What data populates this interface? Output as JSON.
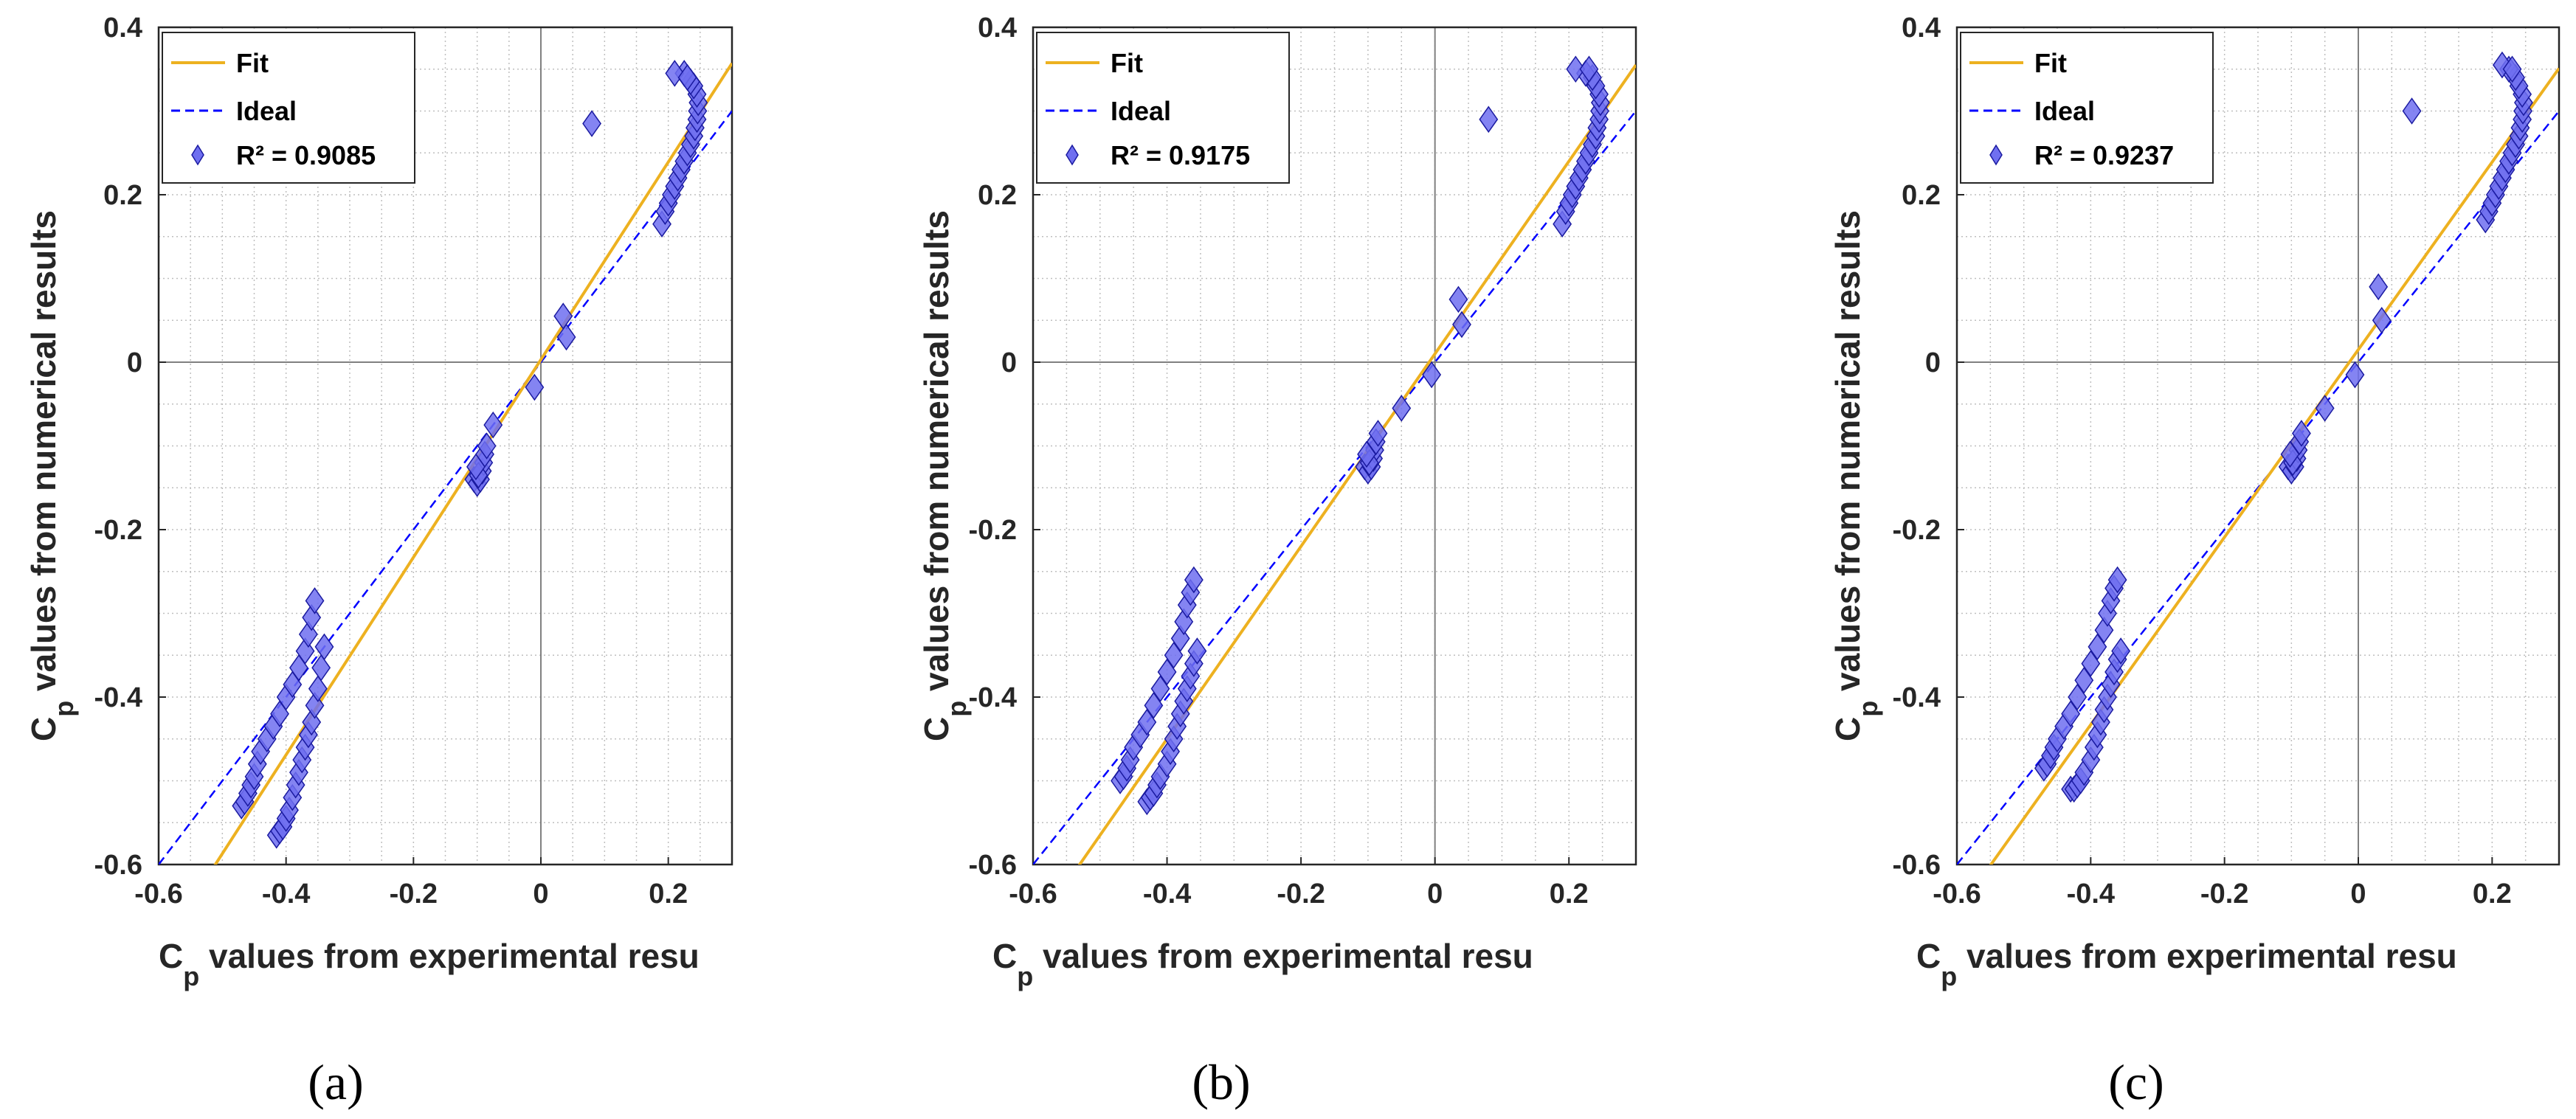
{
  "colors": {
    "fit": "#EDB120",
    "ideal": "#0000FF",
    "marker_fill": "#6F6FF0",
    "marker_edge": "#1A1AA0",
    "grid": "#BFBFBF",
    "axes": "#262626"
  },
  "chart_data": [
    {
      "type": "scatter",
      "caption": "(a)",
      "xlabel_main": "C",
      "xlabel_sub": "p",
      "xlabel_rest": " values from experimental resu",
      "ylabel_main": "C",
      "ylabel_sub": "p",
      "ylabel_rest": " values from numerical results",
      "xlim": [
        -0.6,
        0.3
      ],
      "ylim": [
        -0.6,
        0.4
      ],
      "xticks": [
        "-0.6",
        "-0.4",
        "-0.2",
        "0",
        "0.2"
      ],
      "yticks": [
        "-0.6",
        "-0.4",
        "-0.2",
        "0",
        "0.2",
        "0.4"
      ],
      "legend": {
        "position": "top-left",
        "entries": [
          "Fit",
          "Ideal",
          "R² = 0.9085"
        ]
      },
      "fit_line": {
        "slope": 1.18,
        "intercept": 0.003
      },
      "ideal_line": {
        "slope": 1,
        "intercept": 0
      },
      "points": [
        [
          -0.47,
          -0.53
        ],
        [
          -0.465,
          -0.525
        ],
        [
          -0.46,
          -0.515
        ],
        [
          -0.455,
          -0.505
        ],
        [
          -0.45,
          -0.495
        ],
        [
          -0.445,
          -0.48
        ],
        [
          -0.44,
          -0.465
        ],
        [
          -0.43,
          -0.45
        ],
        [
          -0.42,
          -0.435
        ],
        [
          -0.41,
          -0.42
        ],
        [
          -0.4,
          -0.4
        ],
        [
          -0.39,
          -0.385
        ],
        [
          -0.38,
          -0.365
        ],
        [
          -0.37,
          -0.345
        ],
        [
          -0.365,
          -0.325
        ],
        [
          -0.36,
          -0.305
        ],
        [
          -0.355,
          -0.285
        ],
        [
          -0.415,
          -0.565
        ],
        [
          -0.41,
          -0.56
        ],
        [
          -0.405,
          -0.555
        ],
        [
          -0.4,
          -0.545
        ],
        [
          -0.395,
          -0.535
        ],
        [
          -0.39,
          -0.52
        ],
        [
          -0.385,
          -0.505
        ],
        [
          -0.38,
          -0.49
        ],
        [
          -0.375,
          -0.475
        ],
        [
          -0.37,
          -0.46
        ],
        [
          -0.365,
          -0.445
        ],
        [
          -0.36,
          -0.43
        ],
        [
          -0.355,
          -0.41
        ],
        [
          -0.35,
          -0.39
        ],
        [
          -0.345,
          -0.365
        ],
        [
          -0.34,
          -0.34
        ],
        [
          -0.105,
          -0.14
        ],
        [
          -0.1,
          -0.145
        ],
        [
          -0.095,
          -0.14
        ],
        [
          -0.092,
          -0.13
        ],
        [
          -0.09,
          -0.12
        ],
        [
          -0.088,
          -0.11
        ],
        [
          -0.085,
          -0.1
        ],
        [
          -0.098,
          -0.135
        ],
        [
          -0.102,
          -0.125
        ],
        [
          -0.075,
          -0.075
        ],
        [
          -0.01,
          -0.03
        ],
        [
          0.035,
          0.055
        ],
        [
          0.04,
          0.03
        ],
        [
          0.08,
          0.285
        ],
        [
          0.19,
          0.165
        ],
        [
          0.195,
          0.18
        ],
        [
          0.2,
          0.19
        ],
        [
          0.205,
          0.2
        ],
        [
          0.21,
          0.21
        ],
        [
          0.215,
          0.22
        ],
        [
          0.22,
          0.23
        ],
        [
          0.225,
          0.24
        ],
        [
          0.23,
          0.25
        ],
        [
          0.235,
          0.26
        ],
        [
          0.24,
          0.27
        ],
        [
          0.242,
          0.28
        ],
        [
          0.245,
          0.29
        ],
        [
          0.246,
          0.3
        ],
        [
          0.247,
          0.31
        ],
        [
          0.245,
          0.32
        ],
        [
          0.24,
          0.33
        ],
        [
          0.235,
          0.335
        ],
        [
          0.225,
          0.345
        ],
        [
          0.21,
          0.345
        ],
        [
          0.23,
          0.34
        ]
      ]
    },
    {
      "type": "scatter",
      "caption": "(b)",
      "xlabel_main": "C",
      "xlabel_sub": "p",
      "xlabel_rest": " values from experimental resu",
      "ylabel_main": "C",
      "ylabel_sub": "p",
      "ylabel_rest": " values from numerical results",
      "xlim": [
        -0.6,
        0.3
      ],
      "ylim": [
        -0.6,
        0.4
      ],
      "xticks": [
        "-0.6",
        "-0.4",
        "-0.2",
        "0",
        "0.2"
      ],
      "yticks": [
        "-0.6",
        "-0.4",
        "-0.2",
        "0",
        "0.2",
        "0.4"
      ],
      "legend": {
        "position": "top-left",
        "entries": [
          "Fit",
          "Ideal",
          "R² = 0.9175"
        ]
      },
      "fit_line": {
        "slope": 1.15,
        "intercept": 0.01
      },
      "ideal_line": {
        "slope": 1,
        "intercept": 0
      },
      "points": [
        [
          -0.47,
          -0.5
        ],
        [
          -0.465,
          -0.495
        ],
        [
          -0.46,
          -0.485
        ],
        [
          -0.455,
          -0.475
        ],
        [
          -0.45,
          -0.46
        ],
        [
          -0.44,
          -0.445
        ],
        [
          -0.43,
          -0.43
        ],
        [
          -0.42,
          -0.41
        ],
        [
          -0.41,
          -0.39
        ],
        [
          -0.4,
          -0.37
        ],
        [
          -0.39,
          -0.35
        ],
        [
          -0.38,
          -0.33
        ],
        [
          -0.375,
          -0.31
        ],
        [
          -0.37,
          -0.29
        ],
        [
          -0.365,
          -0.275
        ],
        [
          -0.36,
          -0.26
        ],
        [
          -0.43,
          -0.525
        ],
        [
          -0.425,
          -0.52
        ],
        [
          -0.42,
          -0.515
        ],
        [
          -0.415,
          -0.505
        ],
        [
          -0.41,
          -0.495
        ],
        [
          -0.4,
          -0.48
        ],
        [
          -0.395,
          -0.465
        ],
        [
          -0.39,
          -0.45
        ],
        [
          -0.385,
          -0.435
        ],
        [
          -0.38,
          -0.42
        ],
        [
          -0.375,
          -0.405
        ],
        [
          -0.37,
          -0.39
        ],
        [
          -0.365,
          -0.375
        ],
        [
          -0.36,
          -0.36
        ],
        [
          -0.355,
          -0.345
        ],
        [
          -0.105,
          -0.125
        ],
        [
          -0.1,
          -0.13
        ],
        [
          -0.095,
          -0.125
        ],
        [
          -0.092,
          -0.115
        ],
        [
          -0.09,
          -0.105
        ],
        [
          -0.088,
          -0.095
        ],
        [
          -0.085,
          -0.085
        ],
        [
          -0.098,
          -0.12
        ],
        [
          -0.102,
          -0.11
        ],
        [
          -0.05,
          -0.055
        ],
        [
          -0.005,
          -0.015
        ],
        [
          0.035,
          0.075
        ],
        [
          0.04,
          0.045
        ],
        [
          0.08,
          0.29
        ],
        [
          0.19,
          0.165
        ],
        [
          0.195,
          0.18
        ],
        [
          0.2,
          0.19
        ],
        [
          0.205,
          0.2
        ],
        [
          0.21,
          0.21
        ],
        [
          0.215,
          0.22
        ],
        [
          0.22,
          0.23
        ],
        [
          0.225,
          0.24
        ],
        [
          0.23,
          0.25
        ],
        [
          0.235,
          0.26
        ],
        [
          0.24,
          0.27
        ],
        [
          0.242,
          0.28
        ],
        [
          0.245,
          0.29
        ],
        [
          0.246,
          0.3
        ],
        [
          0.247,
          0.31
        ],
        [
          0.245,
          0.32
        ],
        [
          0.24,
          0.33
        ],
        [
          0.235,
          0.34
        ],
        [
          0.225,
          0.345
        ],
        [
          0.21,
          0.35
        ],
        [
          0.23,
          0.35
        ]
      ]
    },
    {
      "type": "scatter",
      "caption": "(c)",
      "xlabel_main": "C",
      "xlabel_sub": "p",
      "xlabel_rest": " values from experimental resu",
      "ylabel_main": "C",
      "ylabel_sub": "p",
      "ylabel_rest": " values from numerical results",
      "xlim": [
        -0.6,
        0.3
      ],
      "ylim": [
        -0.6,
        0.4
      ],
      "xticks": [
        "-0.6",
        "-0.4",
        "-0.2",
        "0",
        "0.2"
      ],
      "yticks": [
        "-0.6",
        "-0.4",
        "-0.2",
        "0",
        "0.2",
        "0.4"
      ],
      "legend": {
        "position": "top-left",
        "entries": [
          "Fit",
          "Ideal",
          "R² = 0.9237"
        ]
      },
      "fit_line": {
        "slope": 1.12,
        "intercept": 0.015
      },
      "ideal_line": {
        "slope": 1,
        "intercept": 0
      },
      "points": [
        [
          -0.47,
          -0.485
        ],
        [
          -0.465,
          -0.48
        ],
        [
          -0.46,
          -0.47
        ],
        [
          -0.455,
          -0.46
        ],
        [
          -0.45,
          -0.45
        ],
        [
          -0.44,
          -0.435
        ],
        [
          -0.43,
          -0.42
        ],
        [
          -0.42,
          -0.4
        ],
        [
          -0.41,
          -0.38
        ],
        [
          -0.4,
          -0.36
        ],
        [
          -0.39,
          -0.34
        ],
        [
          -0.38,
          -0.32
        ],
        [
          -0.375,
          -0.3
        ],
        [
          -0.37,
          -0.285
        ],
        [
          -0.365,
          -0.27
        ],
        [
          -0.36,
          -0.26
        ],
        [
          -0.43,
          -0.51
        ],
        [
          -0.425,
          -0.51
        ],
        [
          -0.42,
          -0.505
        ],
        [
          -0.415,
          -0.5
        ],
        [
          -0.41,
          -0.49
        ],
        [
          -0.4,
          -0.475
        ],
        [
          -0.395,
          -0.46
        ],
        [
          -0.39,
          -0.445
        ],
        [
          -0.385,
          -0.43
        ],
        [
          -0.38,
          -0.415
        ],
        [
          -0.375,
          -0.4
        ],
        [
          -0.37,
          -0.385
        ],
        [
          -0.365,
          -0.37
        ],
        [
          -0.36,
          -0.355
        ],
        [
          -0.355,
          -0.345
        ],
        [
          -0.105,
          -0.125
        ],
        [
          -0.1,
          -0.13
        ],
        [
          -0.095,
          -0.125
        ],
        [
          -0.092,
          -0.115
        ],
        [
          -0.09,
          -0.105
        ],
        [
          -0.088,
          -0.095
        ],
        [
          -0.085,
          -0.085
        ],
        [
          -0.098,
          -0.12
        ],
        [
          -0.102,
          -0.11
        ],
        [
          -0.05,
          -0.055
        ],
        [
          -0.005,
          -0.015
        ],
        [
          0.03,
          0.09
        ],
        [
          0.035,
          0.05
        ],
        [
          0.08,
          0.3
        ],
        [
          0.19,
          0.17
        ],
        [
          0.195,
          0.18
        ],
        [
          0.2,
          0.19
        ],
        [
          0.205,
          0.2
        ],
        [
          0.21,
          0.21
        ],
        [
          0.215,
          0.22
        ],
        [
          0.22,
          0.23
        ],
        [
          0.225,
          0.24
        ],
        [
          0.23,
          0.25
        ],
        [
          0.235,
          0.26
        ],
        [
          0.24,
          0.27
        ],
        [
          0.242,
          0.28
        ],
        [
          0.245,
          0.29
        ],
        [
          0.246,
          0.3
        ],
        [
          0.247,
          0.31
        ],
        [
          0.245,
          0.32
        ],
        [
          0.24,
          0.33
        ],
        [
          0.235,
          0.34
        ],
        [
          0.225,
          0.35
        ],
        [
          0.215,
          0.355
        ],
        [
          0.23,
          0.35
        ]
      ]
    }
  ]
}
